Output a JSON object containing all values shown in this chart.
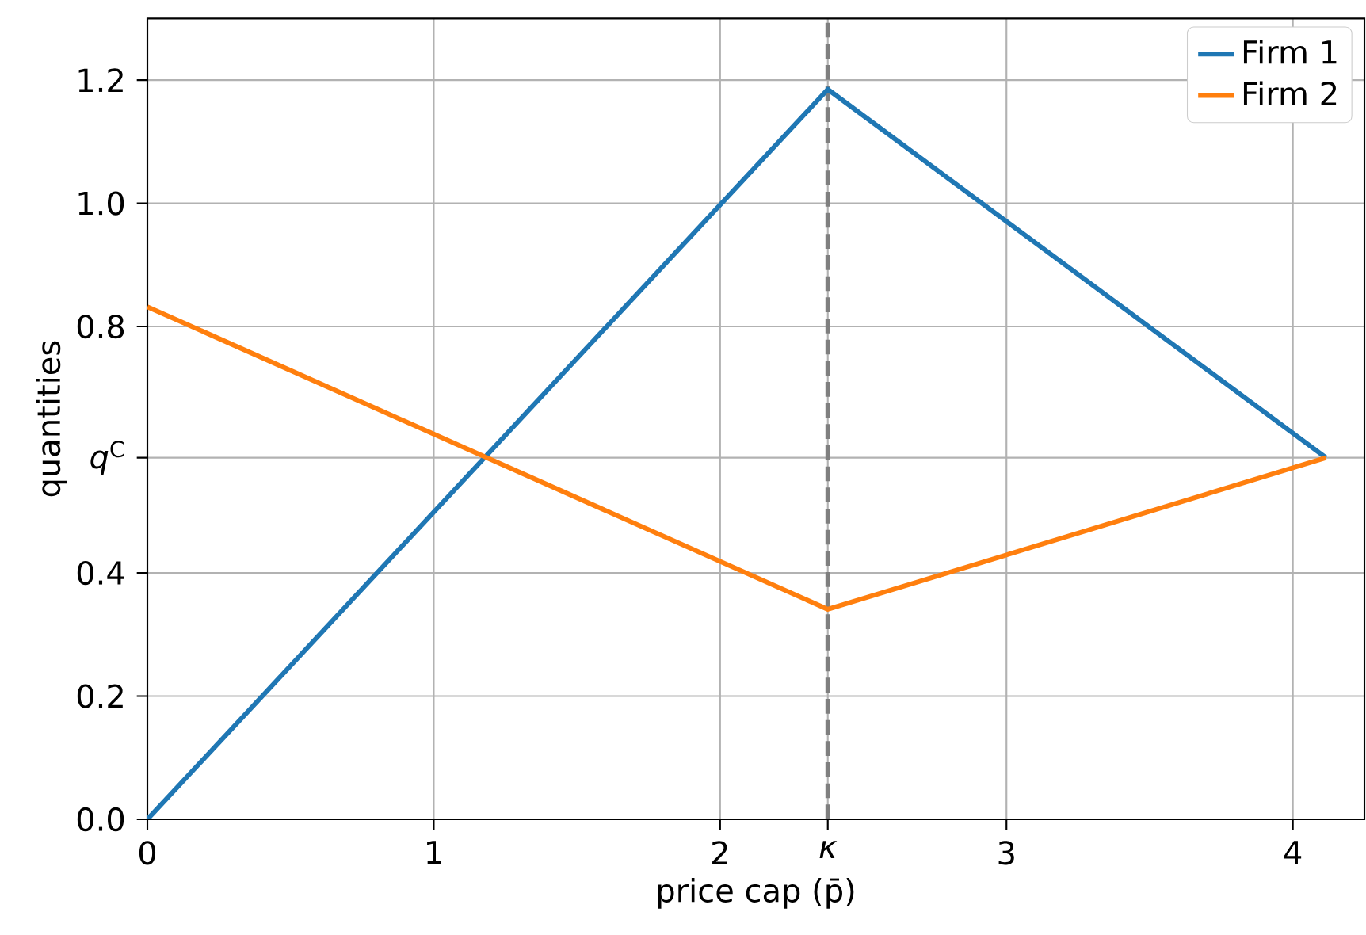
{
  "chart_data": {
    "type": "line",
    "xlabel": "price cap (p̄)",
    "ylabel": "quantities",
    "series": [
      {
        "name": "Firm 1",
        "color": "#1f77b4",
        "x": [
          0,
          2.376,
          4.116
        ],
        "values": [
          0,
          1.185,
          0.587
        ]
      },
      {
        "name": "Firm 2",
        "color": "#ff7f0e",
        "x": [
          0,
          2.376,
          4.116
        ],
        "values": [
          0.832,
          0.341,
          0.587
        ]
      }
    ],
    "xlim": [
      0,
      4.25
    ],
    "ylim": [
      0,
      1.3
    ],
    "xticks": [
      0,
      1,
      2,
      {
        "value": 2.376,
        "label": "*κ*"
      },
      3,
      4
    ],
    "yticks": [
      {
        "value": 0,
        "label": "0.0"
      },
      0.2,
      0.4,
      {
        "value": 0.587,
        "label": "*q*$^{C}$"
      },
      0.8,
      {
        "value": 1,
        "label": "1.0"
      },
      1.2
    ],
    "ref_lines": [
      {
        "axis": "x",
        "value": 2.376,
        "color": "#7f7f7f",
        "line_style": "dashed"
      }
    ],
    "grid": true,
    "legend": "top right"
  }
}
